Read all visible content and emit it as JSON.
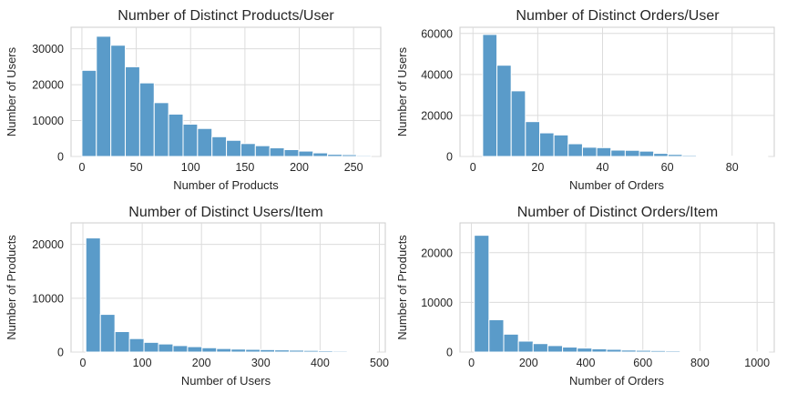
{
  "chart_data": [
    {
      "type": "bar",
      "title": "Number of Distinct Products/User",
      "xlabel": "Number of Products",
      "ylabel": "Number of Users",
      "xlim": [
        -10,
        275
      ],
      "ylim": [
        0,
        36000
      ],
      "xticks": [
        0,
        50,
        100,
        150,
        200,
        250
      ],
      "yticks": [
        0,
        10000,
        20000,
        30000
      ],
      "bin_start": 0,
      "bin_width": 13.3,
      "values": [
        24000,
        33500,
        31000,
        25000,
        20500,
        15000,
        11800,
        9000,
        7800,
        5500,
        4500,
        3600,
        3000,
        2400,
        1900,
        1500,
        1000,
        600,
        500,
        300
      ],
      "grid": true,
      "color": "#5a9bc9"
    },
    {
      "type": "bar",
      "title": "Number of Distinct Orders/User",
      "xlabel": "Number of Orders",
      "ylabel": "Number of Users",
      "xlim": [
        -4,
        93
      ],
      "ylim": [
        0,
        63000
      ],
      "xticks": [
        0,
        20,
        40,
        60,
        80
      ],
      "yticks": [
        0,
        20000,
        40000,
        60000
      ],
      "bin_start": 3,
      "bin_width": 4.4,
      "values": [
        59500,
        44500,
        32000,
        17000,
        11500,
        10500,
        6200,
        4500,
        4300,
        3100,
        3000,
        2600,
        1500,
        1000,
        600,
        300,
        200,
        150,
        100,
        100
      ],
      "grid": true,
      "color": "#5a9bc9"
    },
    {
      "type": "bar",
      "title": "Number of Distinct Users/Item",
      "xlabel": "Number of Users",
      "ylabel": "Number of Products",
      "xlim": [
        -20,
        510
      ],
      "ylim": [
        0,
        24000
      ],
      "xticks": [
        0,
        100,
        200,
        300,
        400,
        500
      ],
      "yticks": [
        0,
        10000,
        20000
      ],
      "bin_start": 5,
      "bin_width": 24.5,
      "values": [
        21200,
        7000,
        3800,
        2500,
        1800,
        1500,
        1200,
        1000,
        800,
        650,
        550,
        500,
        450,
        400,
        350,
        300,
        250,
        200,
        150,
        100
      ],
      "grid": true,
      "color": "#5a9bc9"
    },
    {
      "type": "bar",
      "title": "Number of Distinct Orders/Item",
      "xlabel": "Number of Orders",
      "ylabel": "Number of Products",
      "xlim": [
        -40,
        1060
      ],
      "ylim": [
        0,
        26000
      ],
      "xticks": [
        0,
        200,
        400,
        600,
        800,
        1000
      ],
      "yticks": [
        0,
        10000,
        20000
      ],
      "bin_start": 10,
      "bin_width": 51.5,
      "values": [
        23500,
        6500,
        3600,
        2200,
        1700,
        1300,
        1000,
        800,
        650,
        550,
        400,
        350,
        300,
        250,
        150,
        100,
        80,
        60,
        40,
        20
      ],
      "grid": true,
      "color": "#5a9bc9"
    }
  ]
}
